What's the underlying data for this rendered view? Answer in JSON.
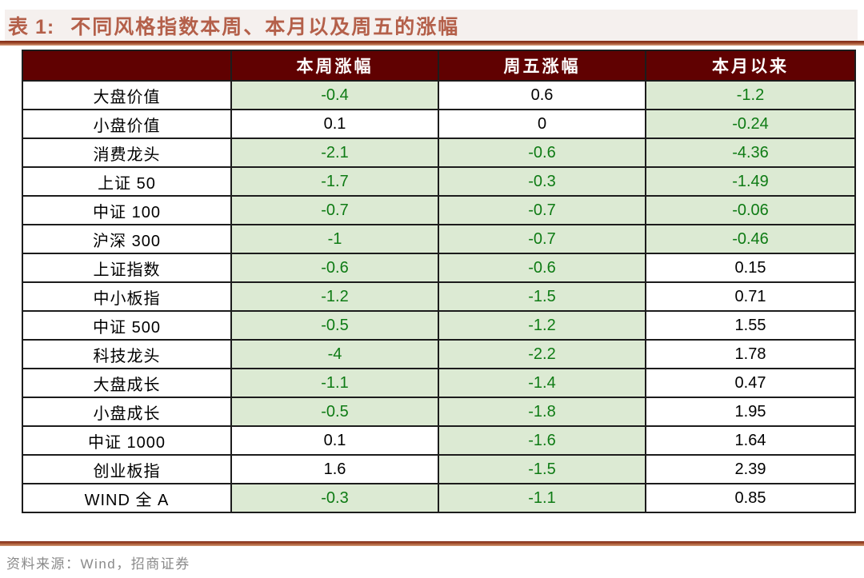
{
  "header": {
    "table_label": "表 1:",
    "title": "不同风格指数本周、本月以及周五的涨幅"
  },
  "table": {
    "corner_label": "",
    "columns": [
      "本周涨幅",
      "周五涨幅",
      "本月以来"
    ],
    "rows": [
      {
        "label": "大盘价值",
        "values": [
          "-0.4",
          "0.6",
          "-1.2"
        ]
      },
      {
        "label": "小盘价值",
        "values": [
          "0.1",
          "0",
          "-0.24"
        ]
      },
      {
        "label": "消费龙头",
        "values": [
          "-2.1",
          "-0.6",
          "-4.36"
        ]
      },
      {
        "label": "上证 50",
        "values": [
          "-1.7",
          "-0.3",
          "-1.49"
        ]
      },
      {
        "label": "中证 100",
        "values": [
          "-0.7",
          "-0.7",
          "-0.06"
        ]
      },
      {
        "label": "沪深 300",
        "values": [
          "-1",
          "-0.7",
          "-0.46"
        ]
      },
      {
        "label": "上证指数",
        "values": [
          "-0.6",
          "-0.6",
          "0.15"
        ]
      },
      {
        "label": "中小板指",
        "values": [
          "-1.2",
          "-1.5",
          "0.71"
        ]
      },
      {
        "label": "中证 500",
        "values": [
          "-0.5",
          "-1.2",
          "1.55"
        ]
      },
      {
        "label": "科技龙头",
        "values": [
          "-4",
          "-2.2",
          "1.78"
        ]
      },
      {
        "label": "大盘成长",
        "values": [
          "-1.1",
          "-1.4",
          "0.47"
        ]
      },
      {
        "label": "小盘成长",
        "values": [
          "-0.5",
          "-1.8",
          "1.95"
        ]
      },
      {
        "label": "中证 1000",
        "values": [
          "0.1",
          "-1.6",
          "1.64"
        ]
      },
      {
        "label": "创业板指",
        "values": [
          "1.6",
          "-1.5",
          "2.39"
        ]
      },
      {
        "label": "WIND 全 A",
        "values": [
          "-0.3",
          "-1.1",
          "0.85"
        ]
      }
    ]
  },
  "chart_data": {
    "type": "table",
    "title": "表 1: 不同风格指数本周、本月以及周五的涨幅",
    "columns": [
      "本周涨幅",
      "周五涨幅",
      "本月以来"
    ],
    "categories": [
      "大盘价值",
      "小盘价值",
      "消费龙头",
      "上证 50",
      "中证 100",
      "沪深 300",
      "上证指数",
      "中小板指",
      "中证 500",
      "科技龙头",
      "大盘成长",
      "小盘成长",
      "中证 1000",
      "创业板指",
      "WIND 全 A"
    ],
    "series": [
      {
        "name": "本周涨幅",
        "values": [
          -0.4,
          0.1,
          -2.1,
          -1.7,
          -0.7,
          -1,
          -0.6,
          -1.2,
          -0.5,
          -4,
          -1.1,
          -0.5,
          0.1,
          1.6,
          -0.3
        ]
      },
      {
        "name": "周五涨幅",
        "values": [
          0.6,
          0,
          -0.6,
          -0.3,
          -0.7,
          -0.7,
          -0.6,
          -1.5,
          -1.2,
          -2.2,
          -1.4,
          -1.8,
          -1.6,
          -1.5,
          -1.1
        ]
      },
      {
        "name": "本月以来",
        "values": [
          -1.2,
          -0.24,
          -4.36,
          -1.49,
          -0.06,
          -0.46,
          0.15,
          0.71,
          1.55,
          1.78,
          0.47,
          1.95,
          1.64,
          2.39,
          0.85
        ]
      }
    ],
    "note": "negative values shown with light-green cell background and green text"
  },
  "footer": {
    "source": "资料来源：Wind，招商证券"
  },
  "colors": {
    "accent_title": "#b4604a",
    "header_bg": "#600101",
    "header_text": "#ffffff",
    "negative_bg": "#dcead3",
    "negative_text": "#0e7b14",
    "rule_dark": "#7e2917",
    "rule_light": "#d89d7b",
    "source_text": "#8a8a8a"
  }
}
